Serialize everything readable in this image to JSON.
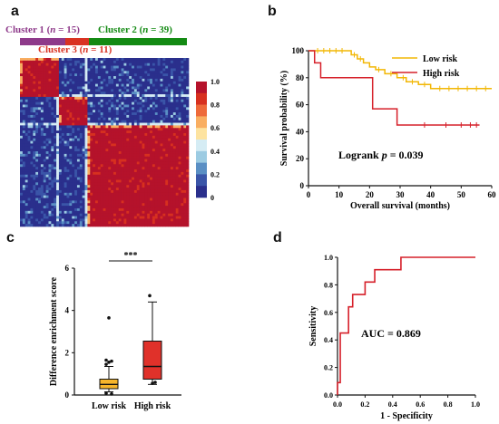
{
  "panels": {
    "a": "a",
    "b": "b",
    "c": "c",
    "d": "d"
  },
  "colors": {
    "cluster1": "#8e3a8a",
    "cluster2": "#138a13",
    "cluster3": "#d93222",
    "low_risk": "#f2b705",
    "high_risk": "#d6202a",
    "box_low": "#f6b52c",
    "box_high": "#e0312a",
    "roc": "#d6202a"
  },
  "chart_data": [
    {
      "type": "heatmap",
      "panel": "a",
      "clusters": [
        {
          "label": "Cluster 1 (",
          "n_label": "n",
          "count_text": " = 15)",
          "n": 15
        },
        {
          "label": "Cluster 2 (",
          "n_label": "n",
          "count_text": " = 39)",
          "n": 39
        },
        {
          "label": "Cluster 3 (",
          "n_label": "n",
          "count_text": " = 11)",
          "n": 11
        }
      ],
      "colorbar_ticks": [
        "1.0",
        "0.8",
        "0.6",
        "0.4",
        "0.2",
        "0"
      ],
      "colorbar_colors": [
        "#b5122b",
        "#d7301f",
        "#ee6a3a",
        "#f9ae61",
        "#fde3a0",
        "#d5ecf4",
        "#9ccbe2",
        "#5a8fc4",
        "#3a55a8",
        "#2a2f8c"
      ],
      "order": [
        {
          "cluster": 1,
          "size": 15
        },
        {
          "cluster": 3,
          "size": 11
        },
        {
          "cluster": 2,
          "size": 39
        }
      ]
    },
    {
      "type": "line",
      "panel": "b",
      "xlabel": "Overall survival (months)",
      "ylabel": "Survival probability (%)",
      "xlim": [
        0,
        60
      ],
      "ylim": [
        0,
        100
      ],
      "xticks": [
        "0",
        "10",
        "20",
        "30",
        "40",
        "50",
        "60"
      ],
      "yticks": [
        "0",
        "20",
        "40",
        "60",
        "80",
        "100"
      ],
      "annotation": {
        "prefix": "Logrank ",
        "p": "p",
        "suffix": " = 0.039"
      },
      "series": [
        {
          "name": "Low risk",
          "steps": [
            [
              0,
              100
            ],
            [
              13,
              100
            ],
            [
              14,
              97
            ],
            [
              16,
              94
            ],
            [
              18,
              91
            ],
            [
              20,
              88
            ],
            [
              22,
              86
            ],
            [
              25,
              83
            ],
            [
              29,
              80
            ],
            [
              32,
              77
            ],
            [
              36,
              75
            ],
            [
              40,
              72
            ],
            [
              60,
              72
            ]
          ],
          "censors": [
            [
              3,
              100
            ],
            [
              5,
              100
            ],
            [
              7,
              100
            ],
            [
              9,
              100
            ],
            [
              11,
              100
            ],
            [
              15,
              97
            ],
            [
              17,
              94
            ],
            [
              23,
              86
            ],
            [
              27,
              83
            ],
            [
              31,
              80
            ],
            [
              34,
              77
            ],
            [
              38,
              75
            ],
            [
              43,
              72
            ],
            [
              46,
              72
            ],
            [
              49,
              72
            ],
            [
              52,
              72
            ],
            [
              55,
              72
            ],
            [
              58,
              72
            ]
          ]
        },
        {
          "name": "High risk",
          "steps": [
            [
              0,
              100
            ],
            [
              2,
              100
            ],
            [
              2,
              91
            ],
            [
              4,
              91
            ],
            [
              4,
              80
            ],
            [
              21,
              80
            ],
            [
              21,
              57
            ],
            [
              29,
              57
            ],
            [
              29,
              45
            ],
            [
              56,
              45
            ]
          ],
          "censors": [
            [
              38,
              45
            ],
            [
              45,
              45
            ],
            [
              50,
              45
            ],
            [
              53,
              45
            ],
            [
              55,
              45
            ]
          ]
        }
      ]
    },
    {
      "type": "box",
      "panel": "c",
      "ylabel": "Difference enrichment score",
      "categories": [
        "Low risk",
        "High risk"
      ],
      "ylim": [
        0,
        6
      ],
      "yticks": [
        "0",
        "2",
        "4",
        "6"
      ],
      "significance": "***",
      "boxes": [
        {
          "category": "Low risk",
          "whisker_low": 0.15,
          "q1": 0.3,
          "median": 0.5,
          "q3": 0.75,
          "whisker_high": 1.35,
          "outliers": [
            1.45,
            1.55,
            1.6,
            1.65,
            3.65,
            0.05,
            0.08
          ]
        },
        {
          "category": "High risk",
          "whisker_low": 0.5,
          "q1": 0.75,
          "median": 1.35,
          "q3": 2.55,
          "whisker_high": 4.4,
          "outliers": [
            4.7,
            0.55,
            0.6
          ]
        }
      ]
    },
    {
      "type": "line",
      "panel": "d",
      "xlabel": "1 - Specificity",
      "ylabel": "Sensitivity",
      "xlim": [
        0,
        1
      ],
      "ylim": [
        0,
        1
      ],
      "xticks": [
        "0.0",
        "0.2",
        "0.4",
        "0.6",
        "0.8",
        "1.0"
      ],
      "yticks": [
        "0.0",
        "0.2",
        "0.4",
        "0.6",
        "0.8",
        "1.0"
      ],
      "annotation": "AUC = 0.869",
      "series": [
        {
          "points": [
            [
              0,
              0
            ],
            [
              0,
              0.09
            ],
            [
              0.02,
              0.09
            ],
            [
              0.02,
              0.45
            ],
            [
              0.08,
              0.45
            ],
            [
              0.08,
              0.64
            ],
            [
              0.11,
              0.64
            ],
            [
              0.11,
              0.73
            ],
            [
              0.2,
              0.73
            ],
            [
              0.2,
              0.82
            ],
            [
              0.27,
              0.82
            ],
            [
              0.27,
              0.91
            ],
            [
              0.46,
              0.91
            ],
            [
              0.46,
              1.0
            ],
            [
              1.0,
              1.0
            ]
          ]
        }
      ]
    }
  ]
}
